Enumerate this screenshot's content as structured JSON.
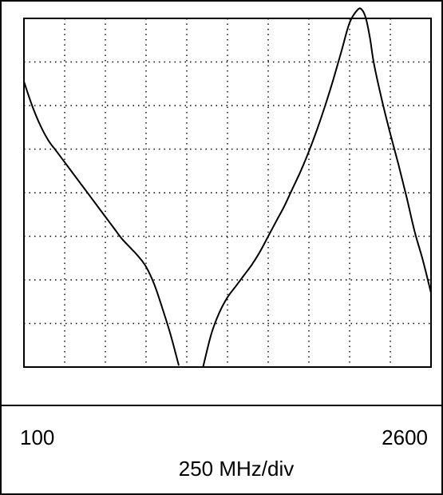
{
  "chart_data": {
    "type": "line",
    "x_start_label": "100",
    "x_end_label": "2600",
    "x_unit_label": "250 MHz/div",
    "xlim": [
      100,
      2600
    ],
    "ylim": [
      0,
      8
    ],
    "x_divisions": 10,
    "y_divisions": 8,
    "grid": true,
    "series": [
      {
        "color": "#000000",
        "x": [
          100,
          150,
          200,
          250,
          300,
          350,
          400,
          450,
          500,
          550,
          600,
          650,
          700,
          750,
          800,
          850,
          900,
          950,
          1000,
          1050,
          1100,
          1150,
          1200,
          1250,
          1300,
          1350,
          1400,
          1450,
          1500,
          1550,
          1600,
          1650,
          1700,
          1750,
          1800,
          1850,
          1900,
          1950,
          2000,
          2050,
          2100,
          2150,
          2175,
          2200,
          2225,
          2250,
          2300,
          2350,
          2400,
          2450,
          2500,
          2550,
          2600
        ],
        "y": [
          6.55,
          6.0,
          5.55,
          5.2,
          4.95,
          4.7,
          4.45,
          4.2,
          3.95,
          3.7,
          3.45,
          3.2,
          2.95,
          2.75,
          2.55,
          2.3,
          1.9,
          1.35,
          0.75,
          0.05,
          null,
          null,
          0.0,
          0.75,
          1.25,
          1.6,
          1.85,
          2.1,
          2.35,
          2.65,
          3.0,
          3.35,
          3.7,
          4.1,
          4.5,
          4.95,
          5.45,
          6.0,
          6.6,
          7.25,
          7.9,
          8.2,
          8.2,
          8.0,
          7.55,
          6.95,
          6.1,
          5.35,
          4.65,
          3.9,
          3.1,
          2.45,
          1.7
        ]
      }
    ]
  }
}
